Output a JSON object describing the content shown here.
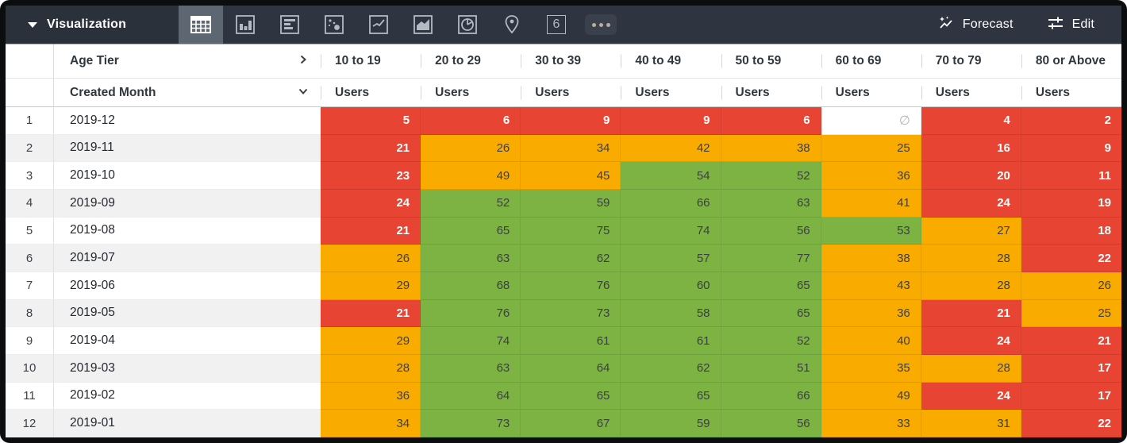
{
  "toolbar": {
    "title": "Visualization",
    "forecast_label": "Forecast",
    "edit_label": "Edit",
    "single_value_glyph": "6",
    "vis_types": [
      "table",
      "column-chart",
      "bar-chart",
      "scatter",
      "line-chart",
      "area-chart",
      "pie-chart",
      "map",
      "single-value",
      "more-options"
    ],
    "selected_vis": "table"
  },
  "table": {
    "pivot_field": "Age Tier",
    "row_field": "Created Month",
    "measure_label": "Users",
    "null_symbol": "∅",
    "columns": [
      "10 to 19",
      "20 to 29",
      "30 to 39",
      "40 to 49",
      "50 to 59",
      "60 to 69",
      "70 to 79",
      "80 or Above"
    ],
    "rows": [
      {
        "index": 1,
        "month": "2019-12",
        "values": [
          5,
          6,
          9,
          9,
          6,
          null,
          4,
          2
        ]
      },
      {
        "index": 2,
        "month": "2019-11",
        "values": [
          21,
          26,
          34,
          42,
          38,
          25,
          16,
          9
        ]
      },
      {
        "index": 3,
        "month": "2019-10",
        "values": [
          23,
          49,
          45,
          54,
          52,
          36,
          20,
          11
        ]
      },
      {
        "index": 4,
        "month": "2019-09",
        "values": [
          24,
          52,
          59,
          66,
          63,
          41,
          24,
          19
        ]
      },
      {
        "index": 5,
        "month": "2019-08",
        "values": [
          21,
          65,
          75,
          74,
          56,
          53,
          27,
          18
        ]
      },
      {
        "index": 6,
        "month": "2019-07",
        "values": [
          26,
          63,
          62,
          57,
          77,
          38,
          28,
          22
        ]
      },
      {
        "index": 7,
        "month": "2019-06",
        "values": [
          29,
          68,
          76,
          60,
          65,
          43,
          28,
          26
        ]
      },
      {
        "index": 8,
        "month": "2019-05",
        "values": [
          21,
          76,
          73,
          58,
          65,
          36,
          21,
          25
        ]
      },
      {
        "index": 9,
        "month": "2019-04",
        "values": [
          29,
          74,
          61,
          61,
          52,
          40,
          24,
          21
        ]
      },
      {
        "index": 10,
        "month": "2019-03",
        "values": [
          28,
          63,
          64,
          62,
          51,
          35,
          28,
          17
        ]
      },
      {
        "index": 11,
        "month": "2019-02",
        "values": [
          36,
          64,
          65,
          65,
          66,
          49,
          24,
          17
        ]
      },
      {
        "index": 12,
        "month": "2019-01",
        "values": [
          34,
          73,
          67,
          59,
          56,
          33,
          31,
          22
        ]
      }
    ]
  },
  "heatmap": {
    "thresholds": {
      "red_below": 25,
      "orange_below": 50
    },
    "colors": {
      "red": "#e84433",
      "orange": "#f9ab00",
      "green": "#7cb342"
    },
    "text_on_red": "#ffffff",
    "text_on_mid": "#3d4043"
  }
}
